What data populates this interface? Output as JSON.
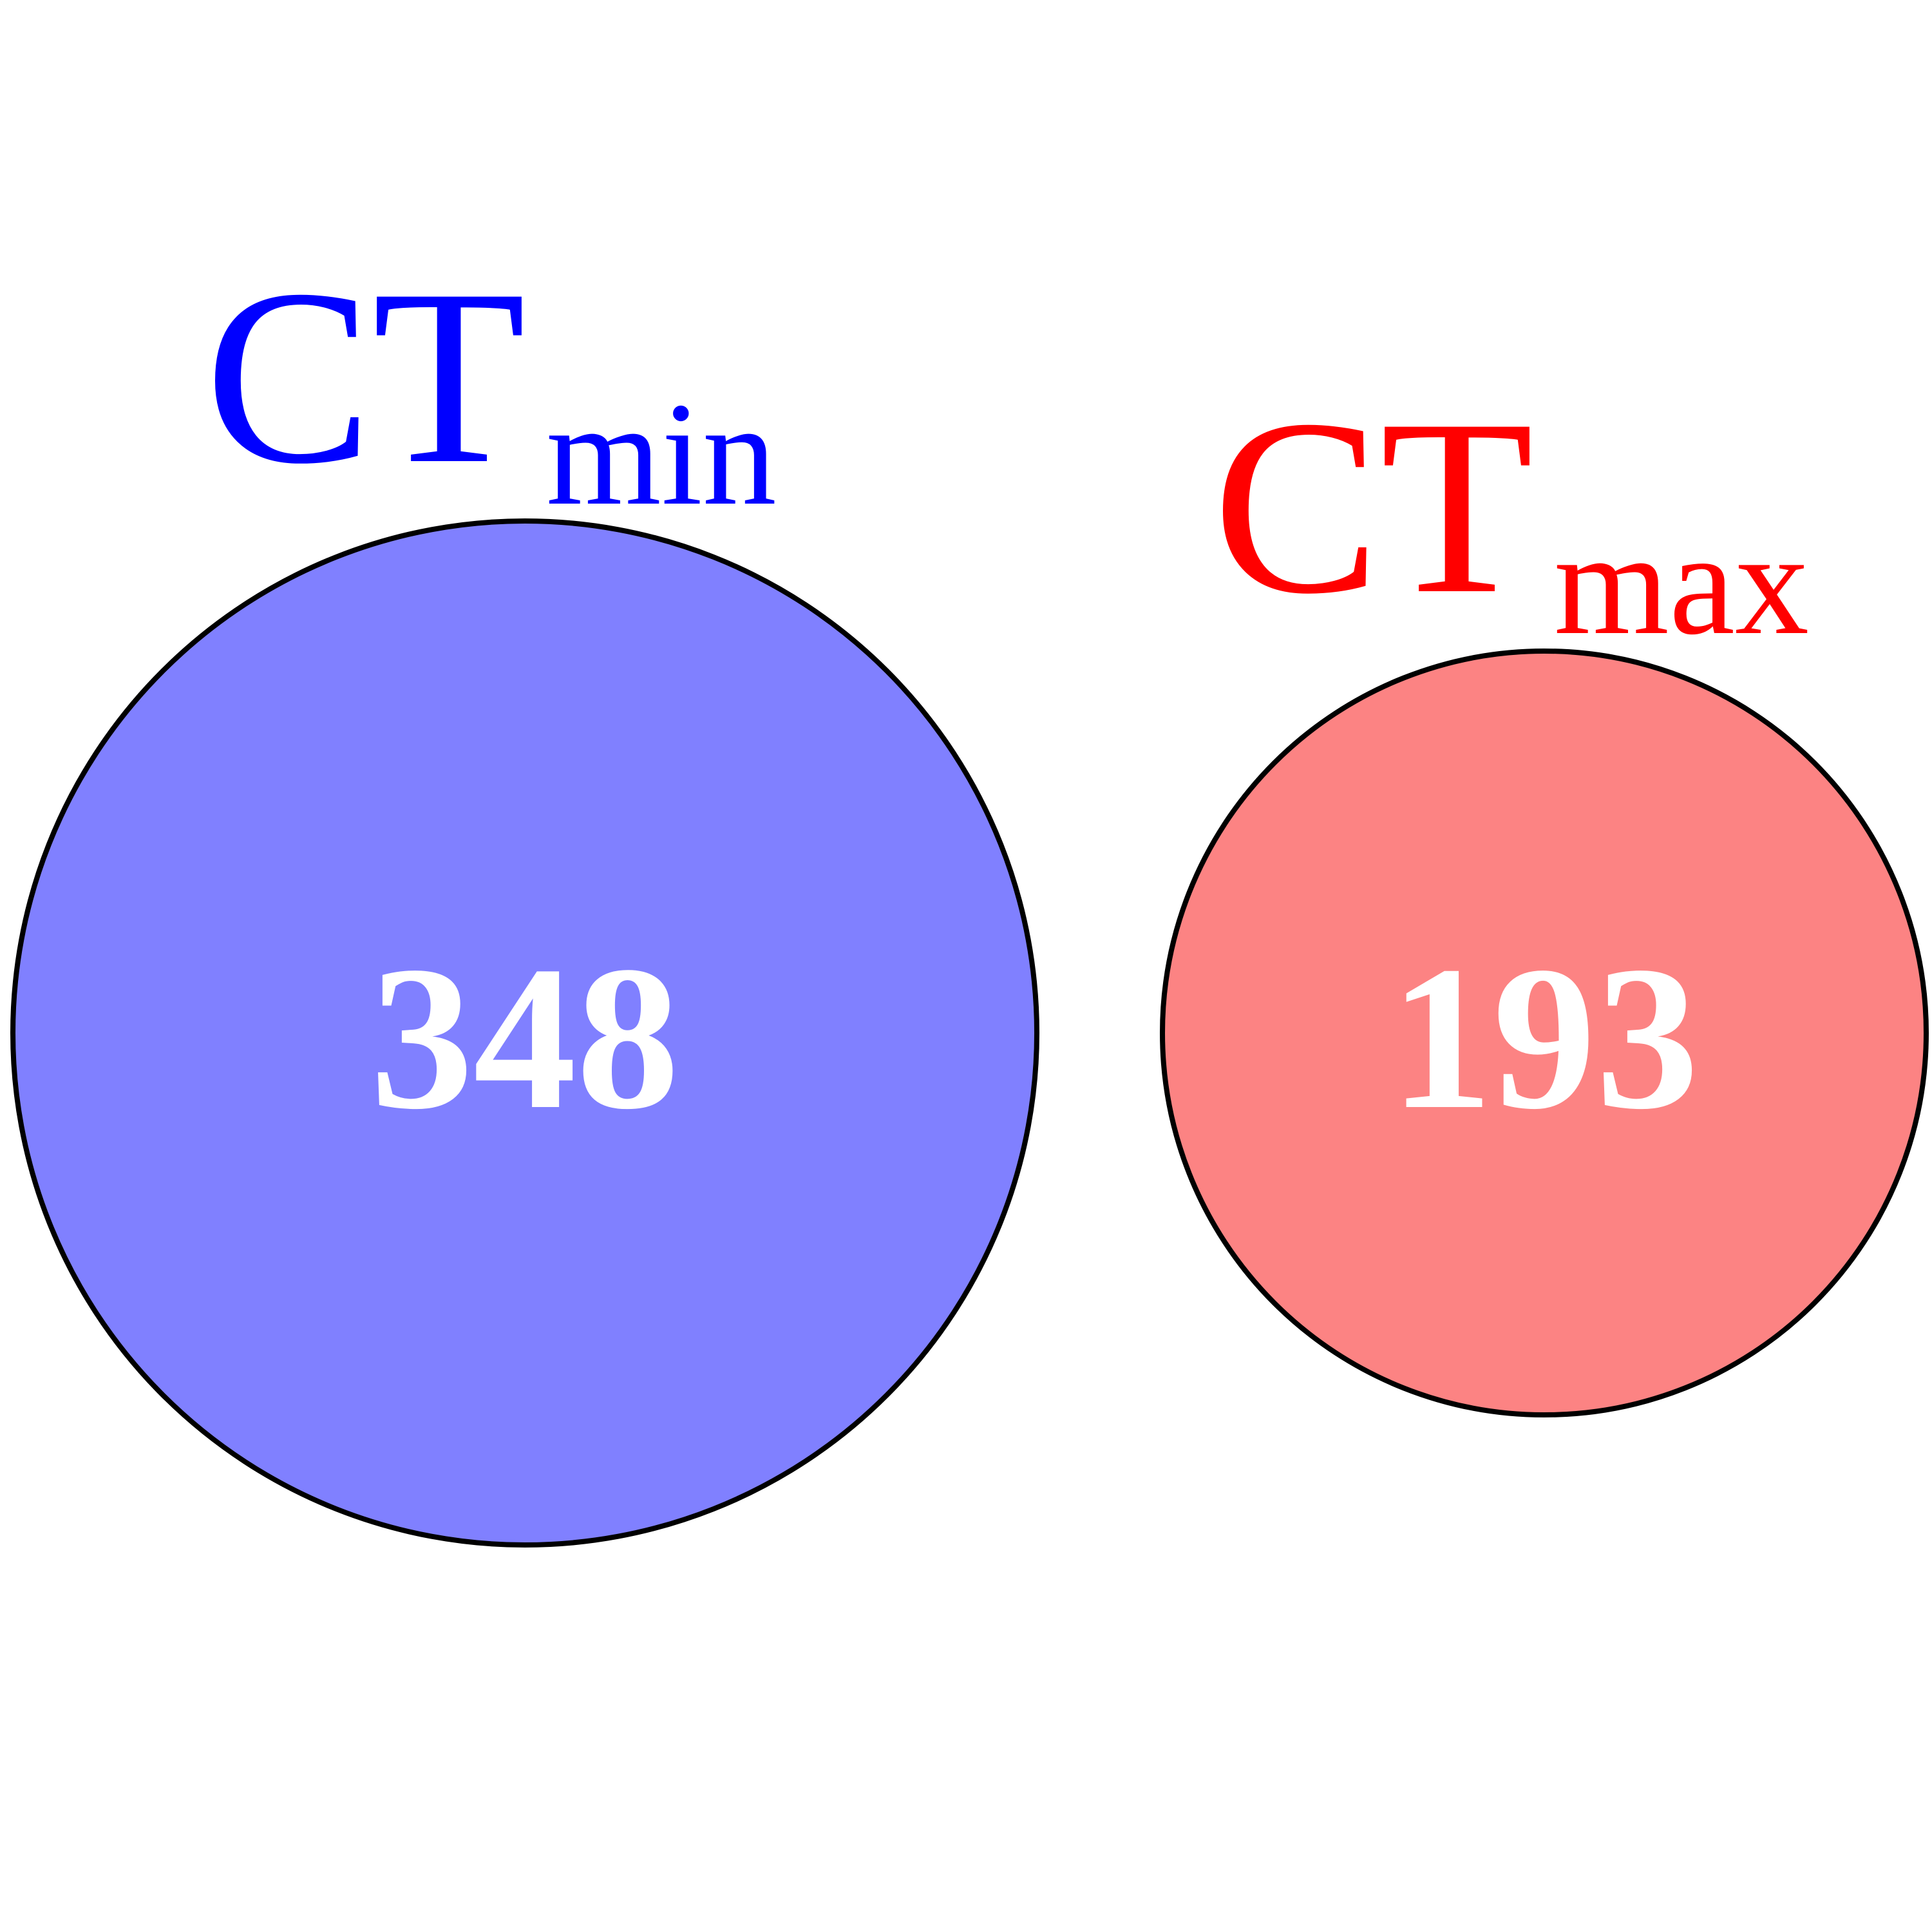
{
  "diagram": {
    "type": "venn",
    "sets": [
      {
        "id": "ctmin",
        "label_main": "CT",
        "label_sub": "min",
        "count": "348",
        "fill_color": "#8080ff",
        "label_color": "#0000ff"
      },
      {
        "id": "ctmax",
        "label_main": "CT",
        "label_sub": "max",
        "count": "193",
        "fill_color": "#fc8383",
        "label_color": "#ff0000"
      }
    ],
    "overlap_count": null,
    "outline_color": "#000000",
    "count_text_color": "#ffffff"
  }
}
